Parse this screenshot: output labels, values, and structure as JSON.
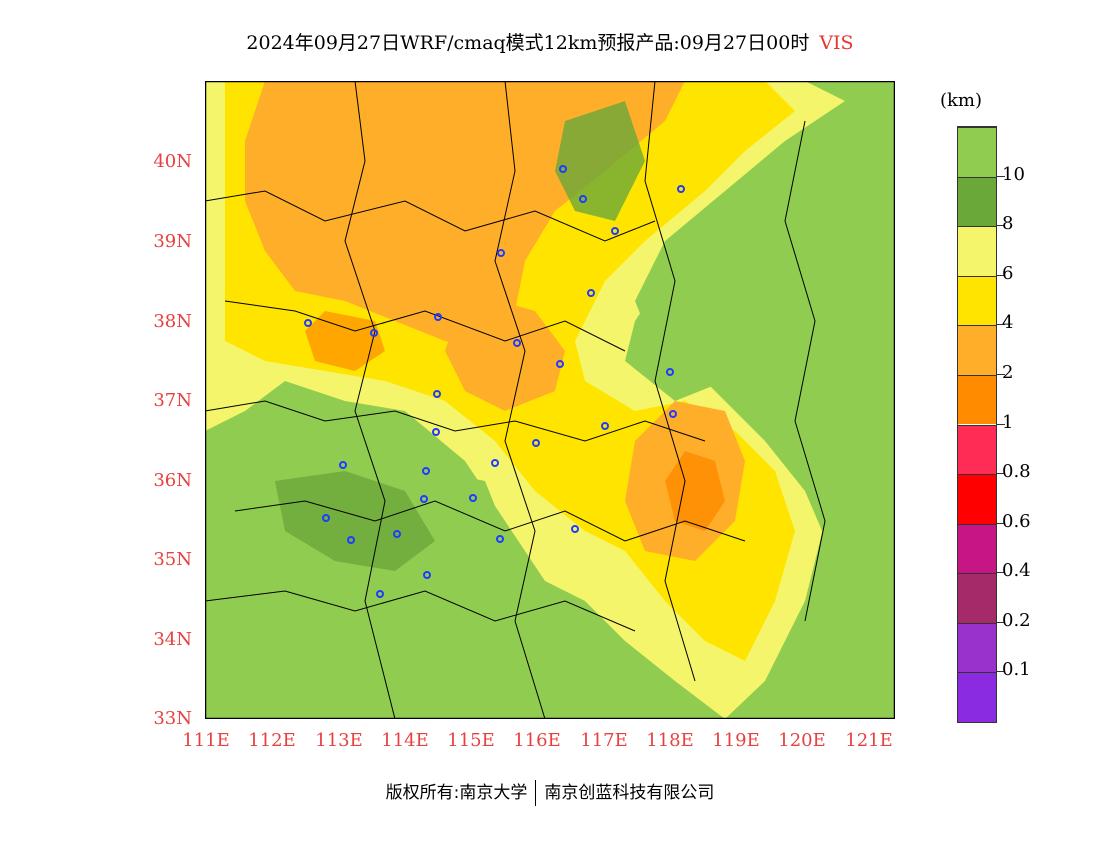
{
  "title": {
    "main": "2024年09月27日WRF/cmaq模式12km预报产品:09月27日00时",
    "variable": "VIS"
  },
  "colorbar": {
    "unit": "(km)",
    "colors": [
      "#8a2be2",
      "#9932cc",
      "#a52a6a",
      "#c71585",
      "#ff0000",
      "#ff2d55",
      "#ff8c00",
      "#ffae2a",
      "#ffe400",
      "#f5f56b",
      "#6aa83a",
      "#90cc50"
    ],
    "labels": [
      "0.1",
      "0.2",
      "0.4",
      "0.6",
      "0.8",
      "1",
      "2",
      "4",
      "6",
      "8",
      "10"
    ]
  },
  "map": {
    "lat_labels": [
      "40N",
      "39N",
      "38N",
      "37N",
      "36N",
      "35N",
      "34N",
      "33N"
    ],
    "lon_labels": [
      "111E",
      "112E",
      "113E",
      "114E",
      "115E",
      "116E",
      "117E",
      "118E",
      "119E",
      "120E",
      "121E"
    ],
    "lat_range": [
      33,
      41
    ],
    "lon_range": [
      111,
      121.4
    ]
  },
  "footer": {
    "left": "版权所有:南京大学",
    "right": "南京创蓝科技有限公司"
  }
}
